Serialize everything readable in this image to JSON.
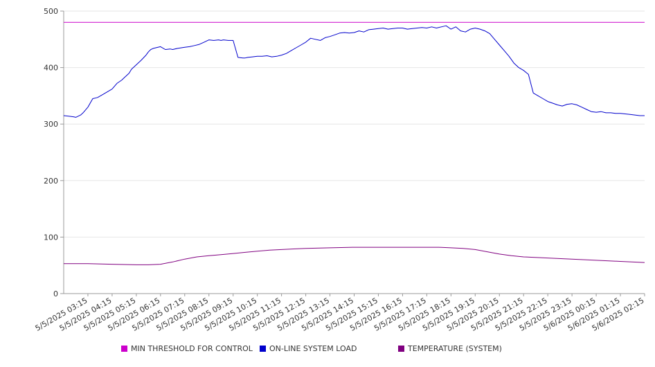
{
  "chart_data": {
    "type": "line",
    "ylim": [
      0,
      500
    ],
    "yticks": [
      0,
      100,
      200,
      300,
      400,
      500
    ],
    "xtick_labels": [
      "5/5/2025 03:15",
      "5/5/2025 04:15",
      "5/5/2025 05:15",
      "5/5/2025 06:15",
      "5/5/2025 07:15",
      "5/5/2025 08:15",
      "5/5/2025 09:15",
      "5/5/2025 10:15",
      "5/5/2025 11:15",
      "5/5/2025 12:15",
      "5/5/2025 13:15",
      "5/5/2025 14:15",
      "5/5/2025 15:15",
      "5/5/2025 16:15",
      "5/5/2025 17:15",
      "5/5/2025 18:15",
      "5/5/2025 19:15",
      "5/5/2025 20:15",
      "5/5/2025 21:15",
      "5/5/2025 22:15",
      "5/5/2025 23:15",
      "5/6/2025 00:15",
      "5/6/2025 01:15",
      "5/6/2025 02:15"
    ],
    "grid": true,
    "legend_position": "bottom",
    "series": [
      {
        "name": "MIN THRESHOLD FOR CONTROL",
        "color": "#cc00cc",
        "x": [
          0,
          24
        ],
        "y": [
          480,
          480
        ]
      },
      {
        "name": "ON-LINE SYSTEM LOAD",
        "color": "#0000cc",
        "x": [
          0,
          0.2,
          0.4,
          0.5,
          0.7,
          0.8,
          1.0,
          1.2,
          1.4,
          1.6,
          1.8,
          2.0,
          2.2,
          2.4,
          2.5,
          2.7,
          2.8,
          3.0,
          3.2,
          3.4,
          3.5,
          3.6,
          3.7,
          4.0,
          4.2,
          4.4,
          4.5,
          4.7,
          5.0,
          5.2,
          5.4,
          5.6,
          5.8,
          6.0,
          6.2,
          6.4,
          6.5,
          6.6,
          6.8,
          7.0,
          7.2,
          7.4,
          7.5,
          7.6,
          7.8,
          8.0,
          8.2,
          8.4,
          8.6,
          8.8,
          9.0,
          9.2,
          9.4,
          9.6,
          9.8,
          10.0,
          10.2,
          10.4,
          10.6,
          10.8,
          11.0,
          11.2,
          11.4,
          11.6,
          11.8,
          12.0,
          12.2,
          12.4,
          12.6,
          12.8,
          13.0,
          13.2,
          13.4,
          13.6,
          13.8,
          14.0,
          14.2,
          14.4,
          14.6,
          14.8,
          15.0,
          15.2,
          15.4,
          15.6,
          15.8,
          16.0,
          16.2,
          16.4,
          16.6,
          16.8,
          17.0,
          17.2,
          17.4,
          17.6,
          17.8,
          18.0,
          18.2,
          18.4,
          18.6,
          18.8,
          19.0,
          19.2,
          19.4,
          19.6,
          19.8,
          20.0,
          20.2,
          20.4,
          20.6,
          20.8,
          21.0,
          21.2,
          21.4,
          21.6,
          21.8,
          22.0,
          22.2,
          22.4,
          22.6,
          22.8,
          23.0,
          23.2,
          23.4,
          23.6,
          23.8,
          24.0
        ],
        "y": [
          315,
          314,
          313,
          312,
          316,
          320,
          330,
          345,
          347,
          352,
          357,
          362,
          372,
          378,
          382,
          390,
          397,
          405,
          413,
          422,
          428,
          432,
          434,
          437,
          432,
          433,
          432,
          434,
          436,
          437,
          439,
          441,
          445,
          449,
          448,
          449,
          448,
          449,
          448,
          448,
          418,
          417,
          417,
          418,
          419,
          420,
          420,
          421,
          419,
          420,
          422,
          425,
          430,
          435,
          440,
          445,
          452,
          450,
          448,
          453,
          455,
          458,
          461,
          462,
          461,
          462,
          465,
          463,
          467,
          468,
          469,
          470,
          468,
          469,
          470,
          470,
          468,
          469,
          470,
          471,
          470,
          472,
          470,
          472,
          474,
          468,
          472,
          465,
          463,
          468,
          470,
          468,
          465,
          460,
          450,
          440,
          430,
          420,
          408,
          400,
          395,
          388,
          355,
          350,
          345,
          340,
          337,
          334,
          332,
          335,
          336,
          334,
          330,
          326,
          322,
          321,
          322,
          320,
          320,
          319,
          319,
          318,
          317,
          316,
          315,
          315
        ]
      },
      {
        "name": "TEMPERATURE (SYSTEM)",
        "color": "#800080",
        "x": [
          0,
          1,
          2,
          3,
          3.5,
          4,
          4.5,
          5,
          5.5,
          6,
          6.5,
          7,
          7.5,
          8,
          8.5,
          9,
          9.5,
          10,
          11,
          12,
          13,
          14,
          15,
          15.5,
          16,
          16.5,
          17,
          17.5,
          18,
          18.5,
          19,
          20,
          21,
          22,
          23,
          24
        ],
        "y": [
          53,
          53,
          52,
          51,
          51,
          52,
          56,
          61,
          65,
          67,
          69,
          71,
          73,
          75,
          77,
          78,
          79,
          80,
          81,
          82,
          82,
          82,
          82,
          82,
          81,
          80,
          78,
          74,
          70,
          67,
          65,
          63,
          61,
          59,
          57,
          55
        ]
      }
    ]
  }
}
